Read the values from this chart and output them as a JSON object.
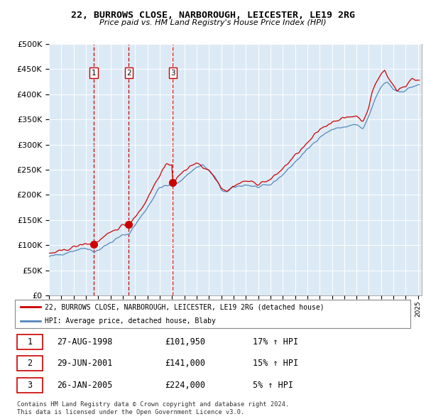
{
  "title": "22, BURROWS CLOSE, NARBOROUGH, LEICESTER, LE19 2RG",
  "subtitle": "Price paid vs. HM Land Registry's House Price Index (HPI)",
  "ytick_values": [
    0,
    50000,
    100000,
    150000,
    200000,
    250000,
    300000,
    350000,
    400000,
    450000,
    500000
  ],
  "xlim_start": 1995.0,
  "xlim_end": 2025.3,
  "ylim_min": 0,
  "ylim_max": 500000,
  "plot_bg_color": "#dceaf5",
  "grid_color": "#ffffff",
  "purchases": [
    {
      "label": "1",
      "date_decimal": 1998.65,
      "price": 101950
    },
    {
      "label": "2",
      "date_decimal": 2001.49,
      "price": 141000
    },
    {
      "label": "3",
      "date_decimal": 2005.07,
      "price": 224000
    }
  ],
  "sale_marker_color": "#cc0000",
  "sale_marker_size": 7,
  "vline_color": "#cc0000",
  "hpi_line_color": "#5588bb",
  "price_line_color": "#cc0000",
  "legend_label_price": "22, BURROWS CLOSE, NARBOROUGH, LEICESTER, LE19 2RG (detached house)",
  "legend_label_hpi": "HPI: Average price, detached house, Blaby",
  "table_entries": [
    {
      "num": "1",
      "date": "27-AUG-1998",
      "price": "£101,950",
      "change": "17% ↑ HPI"
    },
    {
      "num": "2",
      "date": "29-JUN-2001",
      "price": "£141,000",
      "change": "15% ↑ HPI"
    },
    {
      "num": "3",
      "date": "26-JAN-2005",
      "price": "£224,000",
      "change": "5% ↑ HPI"
    }
  ],
  "footer": "Contains HM Land Registry data © Crown copyright and database right 2024.\nThis data is licensed under the Open Government Licence v3.0."
}
